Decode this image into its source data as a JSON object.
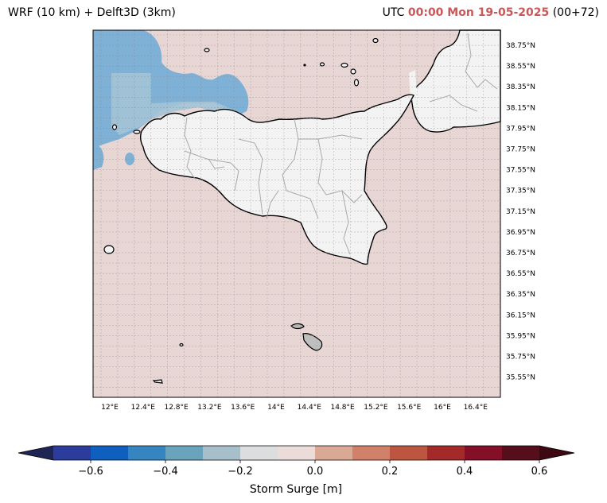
{
  "title": {
    "left": "WRF (10 km) + Delft3D (3km)",
    "right_prefix": "UTC",
    "right_highlight": "00:00 Mon 19-05-2025",
    "right_suffix": "(00+72)"
  },
  "map": {
    "lon_ticks": [
      "12°E",
      "12.4°E",
      "12.8°E",
      "13.2°E",
      "13.6°E",
      "14°E",
      "14.4°E",
      "14.8°E",
      "15.2°E",
      "15.6°E",
      "16°E",
      "16.4°E"
    ],
    "lat_ticks": [
      "38.75°N",
      "38.55°N",
      "38.35°N",
      "38.15°N",
      "37.95°N",
      "37.75°N",
      "37.55°N",
      "37.35°N",
      "37.15°N",
      "36.95°N",
      "36.75°N",
      "36.55°N",
      "36.35°N",
      "36.15°N",
      "35.95°N",
      "35.75°N",
      "35.55°N"
    ],
    "colors": {
      "sea_background": "#e8d6d4",
      "land": "#f3f3f3",
      "negative_surge": "#7fb0d5",
      "coastline": "#000000",
      "borders": "#aaaaaa"
    }
  },
  "colorbar": {
    "label": "Storm Surge [m]",
    "tick_labels": [
      "−0.6",
      "−0.4",
      "−0.2",
      "0.0",
      "0.2",
      "0.4",
      "0.6"
    ],
    "colors": [
      "#1e2453",
      "#2b3c9c",
      "#0f5fbf",
      "#3585c0",
      "#6aa4bc",
      "#a7bfcb",
      "#dcdddf",
      "#ecdcd9",
      "#d9a995",
      "#d1806a",
      "#bd5641",
      "#a32a28",
      "#850f27",
      "#560d1c",
      "#3d0811"
    ]
  }
}
